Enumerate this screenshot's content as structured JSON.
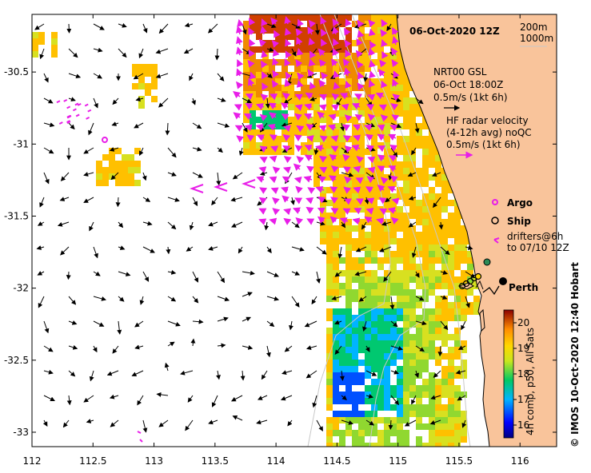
{
  "title": "06-Oct-2020 12Z",
  "depth_contours": [
    "200m",
    "1000m"
  ],
  "x_ticks": [
    "112",
    "112.5",
    "113",
    "113.5",
    "114",
    "114.5",
    "115",
    "115.5",
    "116"
  ],
  "y_ticks": [
    "-30.5",
    "-31",
    "-31.5",
    "-32",
    "-32.5",
    "-33"
  ],
  "lon_range": [
    112,
    116.3
  ],
  "lat_range": [
    -33.1,
    -30.1
  ],
  "legend": {
    "model": [
      "NRT00 GSL",
      "06-Oct 18:00Z",
      "0.5m/s (1kt 6h)"
    ],
    "radar": [
      "HF radar velocity",
      "(4-12h avg) noQC",
      "0.5m/s (1kt 6h)"
    ],
    "argo": "Argo",
    "ship": "Ship",
    "drifters": [
      "drifters@6h",
      "to 07/10 12Z"
    ]
  },
  "city": "Perth",
  "colorbar": {
    "ticks": [
      "20",
      "19",
      "18",
      "17",
      "16"
    ],
    "label": "4h comp, p50, All Sats",
    "range": [
      15.5,
      20.5
    ]
  },
  "credit": "© IMOS 10-Oct-2020 12:40 Hobart",
  "colors": {
    "land": "#f9c49b",
    "model_arrow": "#000000",
    "radar_arrow": "#e81ee8",
    "frame": "#000000"
  }
}
